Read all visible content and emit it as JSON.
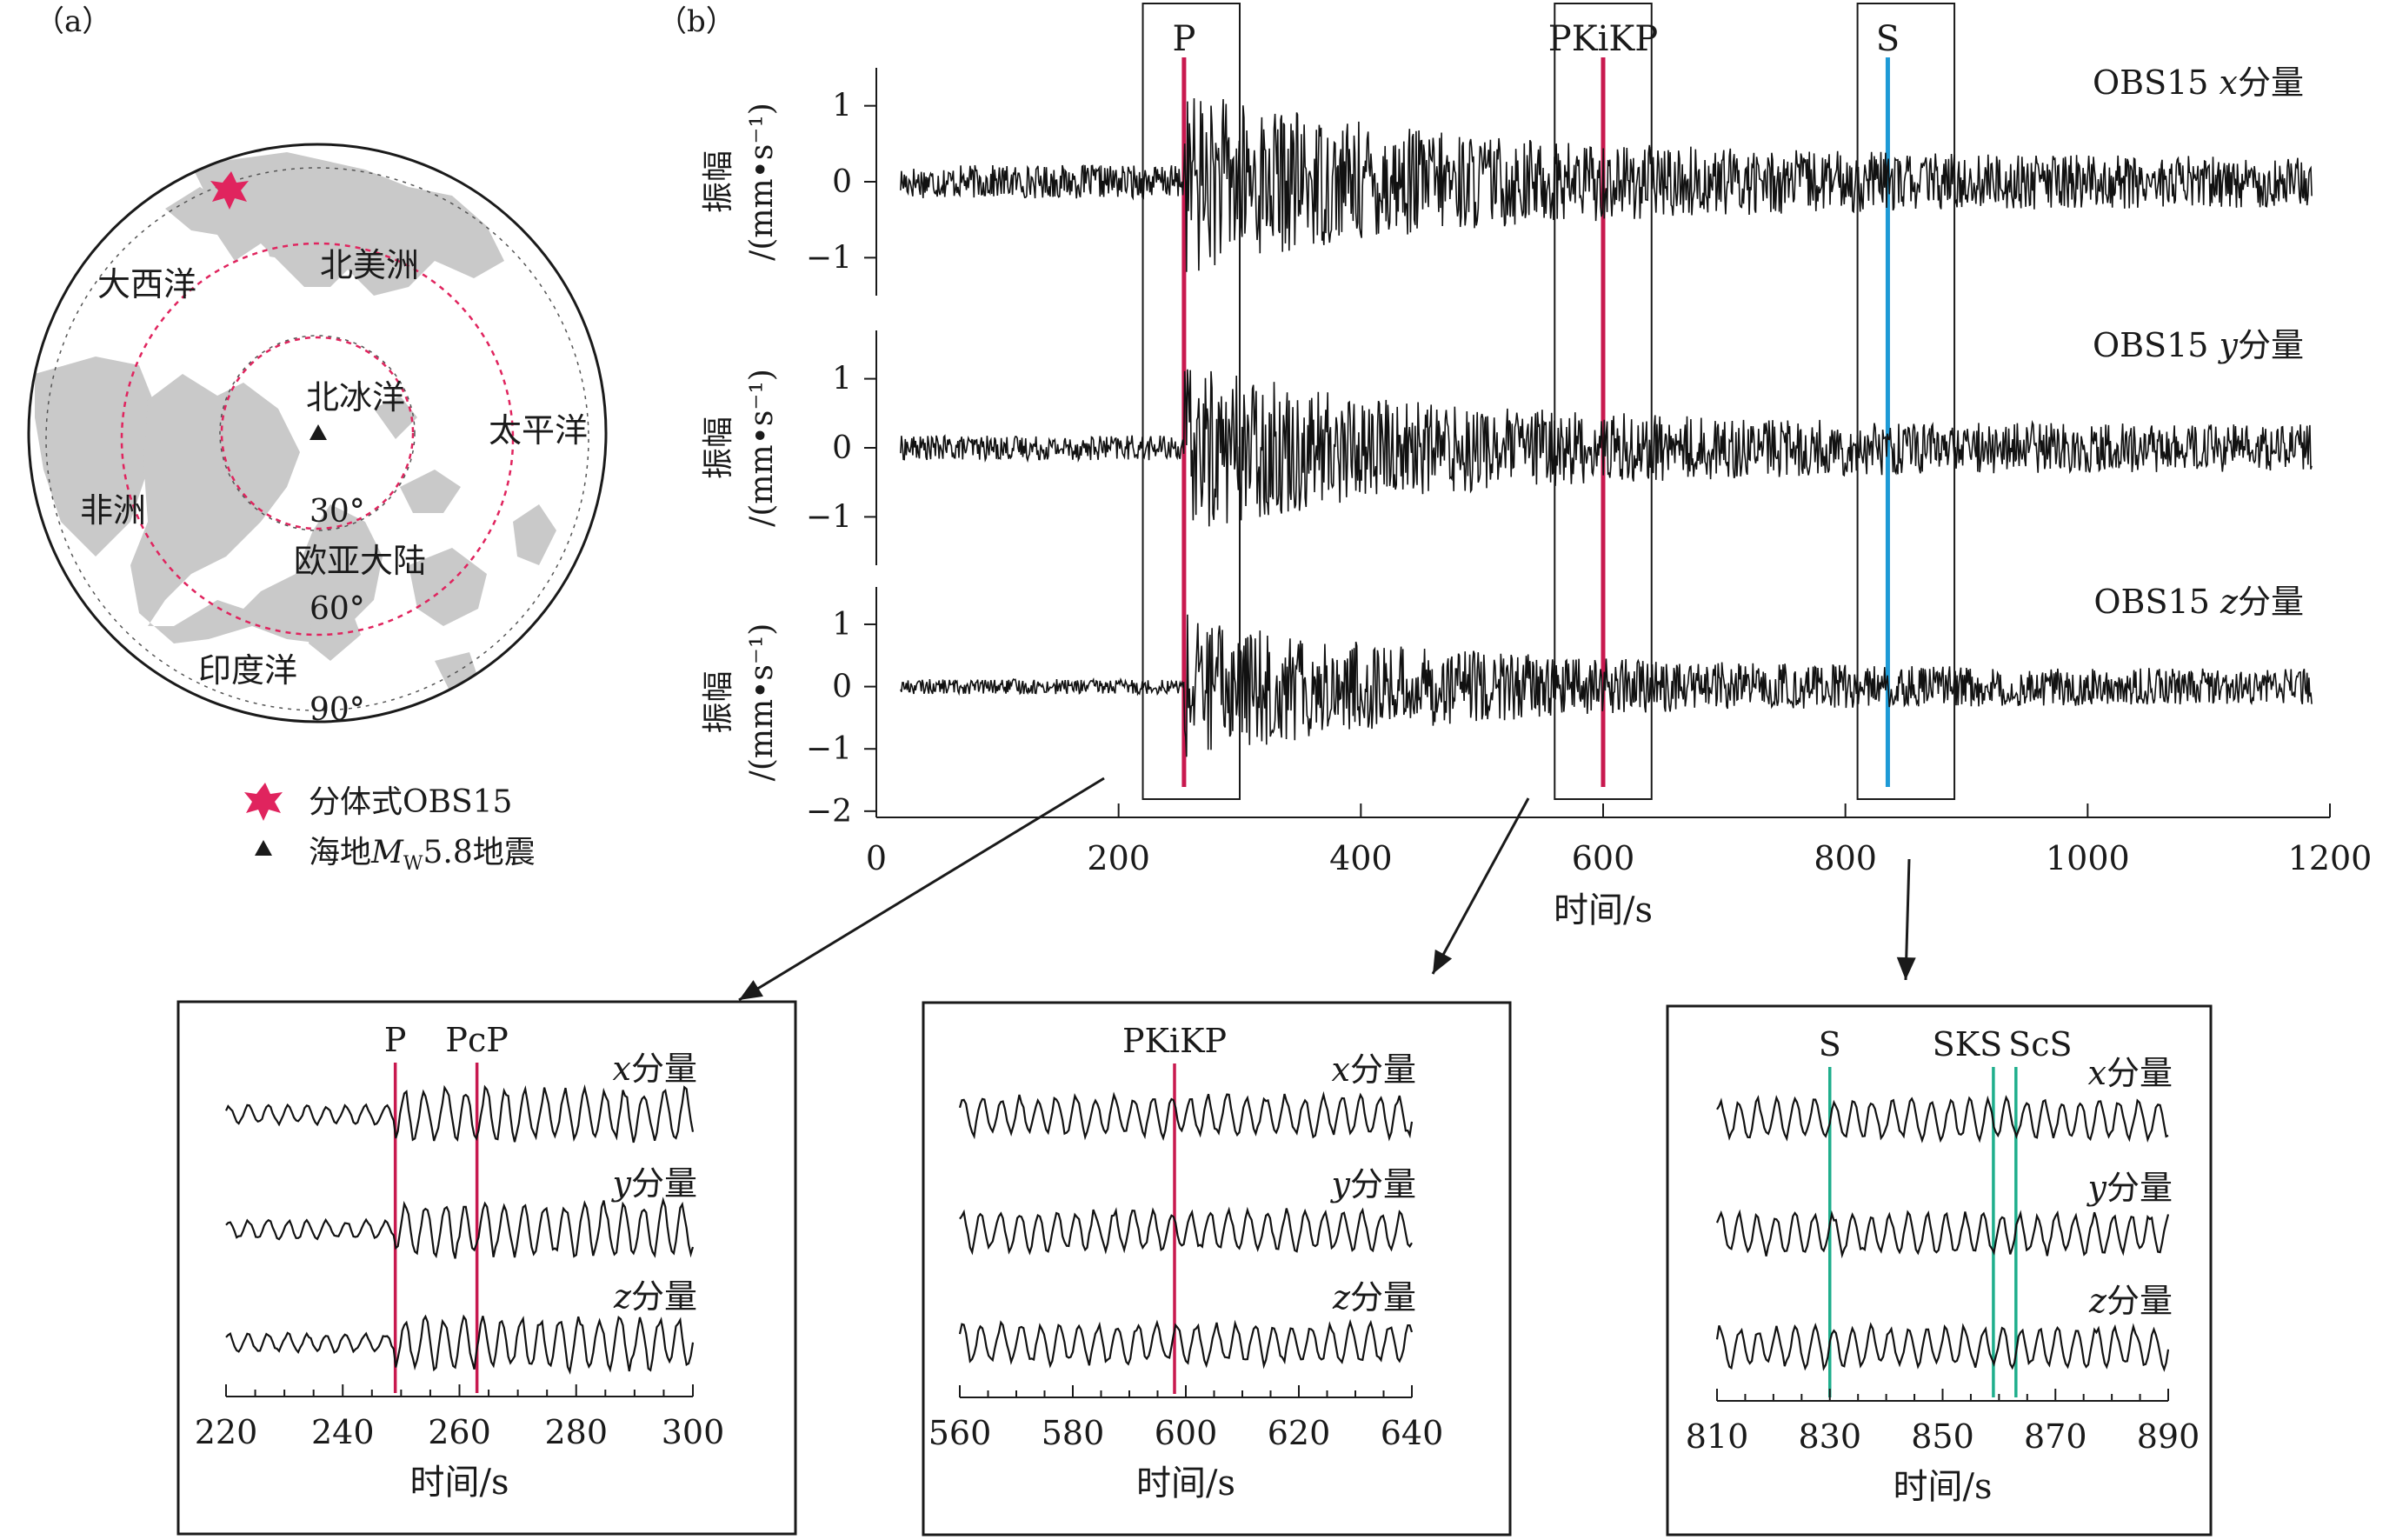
{
  "panel_a": {
    "label": "（a）",
    "places": {
      "atlantic": "大西洋",
      "north_america": "北美洲",
      "arctic": "北冰洋",
      "pacific": "太平洋",
      "africa": "非洲",
      "eurasia": "欧亚大陆",
      "indian": "印度洋"
    },
    "ring_labels": [
      "30°",
      "60°",
      "90°"
    ],
    "legend": [
      {
        "symbol": "red-star",
        "label": "分体式OBS15"
      },
      {
        "symbol": "black-triangle",
        "label_prefix": "海地",
        "label_M": "M",
        "label_w": "W",
        "label_rest": "5.8地震"
      }
    ],
    "colors": {
      "land": "#c9c9c9",
      "ring": "#e0245e",
      "star": "#e0245e"
    }
  },
  "panel_b": {
    "label": "（b）",
    "phase_boxes": [
      {
        "label": "P",
        "x_start": 220,
        "x_end": 300,
        "line_x": 254,
        "color": "#c8194f"
      },
      {
        "label": "PKiKP",
        "x_start": 560,
        "x_end": 640,
        "line_x": 600,
        "color": "#c8194f"
      },
      {
        "label": "S",
        "x_start": 810,
        "x_end": 890,
        "line_x": 835,
        "color": "#1e9ad6"
      }
    ],
    "arrow_note": "arrows link boxes to zoom panels"
  },
  "chart_data": [
    {
      "type": "line",
      "id": "overview",
      "xlabel": "时间/s",
      "xlim": [
        0,
        1200
      ],
      "xticks": [
        0,
        200,
        400,
        600,
        800,
        1000,
        1200
      ],
      "series": [
        {
          "name": "OBS15 x分量",
          "name_prefix": "OBS15 ",
          "name_var": "x",
          "name_suffix": "分量",
          "ylabel_top": "振幅",
          "ylabel_bottom": "/(mm•s⁻¹)",
          "ylim": [
            -1.5,
            1.5
          ],
          "yticks": [
            1,
            0,
            -1
          ],
          "noise_onset": 254,
          "pre_amp": 0.22,
          "post_amp": 0.6
        },
        {
          "name": "OBS15 y分量",
          "name_prefix": "OBS15 ",
          "name_var": "y",
          "name_suffix": "分量",
          "ylabel_top": "振幅",
          "ylabel_bottom": "/(mm•s⁻¹)",
          "ylim": [
            -1.7,
            1.7
          ],
          "yticks": [
            1,
            0,
            -1
          ],
          "noise_onset": 254,
          "pre_amp": 0.18,
          "post_amp": 0.6
        },
        {
          "name": "OBS15 z分量",
          "name_prefix": "OBS15 ",
          "name_var": "z",
          "name_suffix": "分量",
          "ylabel_top": "振幅",
          "ylabel_bottom": "/(mm•s⁻¹)",
          "ylim": [
            -2.1,
            1.6
          ],
          "yticks": [
            1,
            0,
            -1,
            -2
          ],
          "noise_onset": 254,
          "pre_amp": 0.12,
          "post_amp": 0.5
        }
      ]
    },
    {
      "type": "line",
      "id": "zoom_p",
      "xlabel": "时间/s",
      "xlim": [
        220,
        300
      ],
      "xticks": [
        220,
        240,
        260,
        280,
        300
      ],
      "phase_lines": [
        {
          "label": "P",
          "x": 249
        },
        {
          "label": "PcP",
          "x": 263
        }
      ],
      "phase_color": "#c8194f",
      "series": [
        {
          "var": "x",
          "suffix": "分量"
        },
        {
          "var": "y",
          "suffix": "分量"
        },
        {
          "var": "z",
          "suffix": "分量"
        }
      ]
    },
    {
      "type": "line",
      "id": "zoom_pkikp",
      "xlabel": "时间/s",
      "xlim": [
        560,
        640
      ],
      "xticks": [
        560,
        580,
        600,
        620,
        640
      ],
      "phase_lines": [
        {
          "label": "PKiKP",
          "x": 598
        }
      ],
      "phase_color": "#c8194f",
      "series": [
        {
          "var": "x",
          "suffix": "分量"
        },
        {
          "var": "y",
          "suffix": "分量"
        },
        {
          "var": "z",
          "suffix": "分量"
        }
      ]
    },
    {
      "type": "line",
      "id": "zoom_s",
      "xlabel": "时间/s",
      "xlim": [
        810,
        890
      ],
      "xticks": [
        810,
        830,
        850,
        870,
        890
      ],
      "phase_lines": [
        {
          "label": "S",
          "x": 830
        },
        {
          "label": "SKS",
          "x": 859
        },
        {
          "label": "ScS",
          "x": 863
        }
      ],
      "phase_color": "#1fae8c",
      "series": [
        {
          "var": "x",
          "suffix": "分量"
        },
        {
          "var": "y",
          "suffix": "分量"
        },
        {
          "var": "z",
          "suffix": "分量"
        }
      ]
    }
  ]
}
